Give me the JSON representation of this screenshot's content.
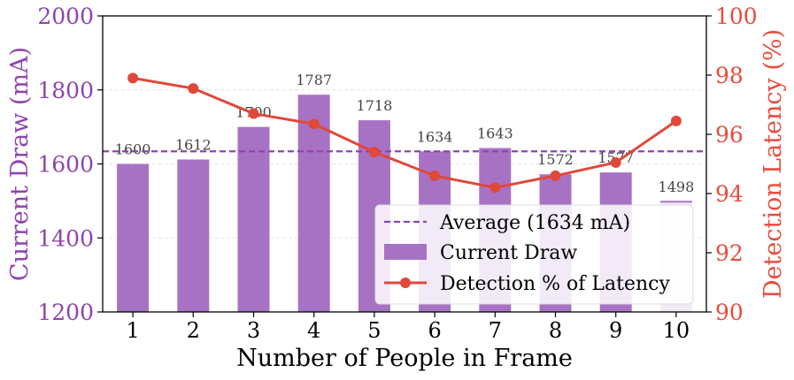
{
  "chart_data": {
    "type": "bar",
    "xlabel": "Number of People in Frame",
    "ylabel_left": "Current Draw (mA)",
    "ylabel_right": "Detection Latency (%)",
    "categories": [
      "1",
      "2",
      "3",
      "4",
      "5",
      "6",
      "7",
      "8",
      "9",
      "10"
    ],
    "ylim_left": [
      1200,
      2000
    ],
    "ylim_right": [
      90,
      100
    ],
    "yticks_left": [
      "1200",
      "1400",
      "1600",
      "1800",
      "2000"
    ],
    "yticks_right": [
      "90",
      "92",
      "94",
      "96",
      "98",
      "100"
    ],
    "grid": true,
    "legend_position": "lower-right",
    "series": [
      {
        "name": "Current Draw",
        "type": "bar",
        "axis": "left",
        "values": [
          1600,
          1612,
          1700,
          1787,
          1718,
          1634,
          1643,
          1572,
          1577,
          1498
        ],
        "labels": [
          "1600",
          "1612",
          "1700",
          "1787",
          "1718",
          "1634",
          "1643",
          "1572",
          "1577",
          "1498"
        ]
      },
      {
        "name": "Detection % of Latency",
        "type": "line",
        "axis": "right",
        "values": [
          97.9,
          97.55,
          96.7,
          96.35,
          95.4,
          94.6,
          94.2,
          94.6,
          95.05,
          96.45
        ]
      }
    ],
    "average": {
      "value": 1634,
      "label": "Average (1634 mA)"
    },
    "colors": {
      "bar": "#a872c4",
      "bar_faded": "#f2ebf6",
      "line": "#e0483a",
      "average": "#8e44ad",
      "left_axis": "#8e44ad",
      "right_axis": "#e74c3c"
    }
  }
}
